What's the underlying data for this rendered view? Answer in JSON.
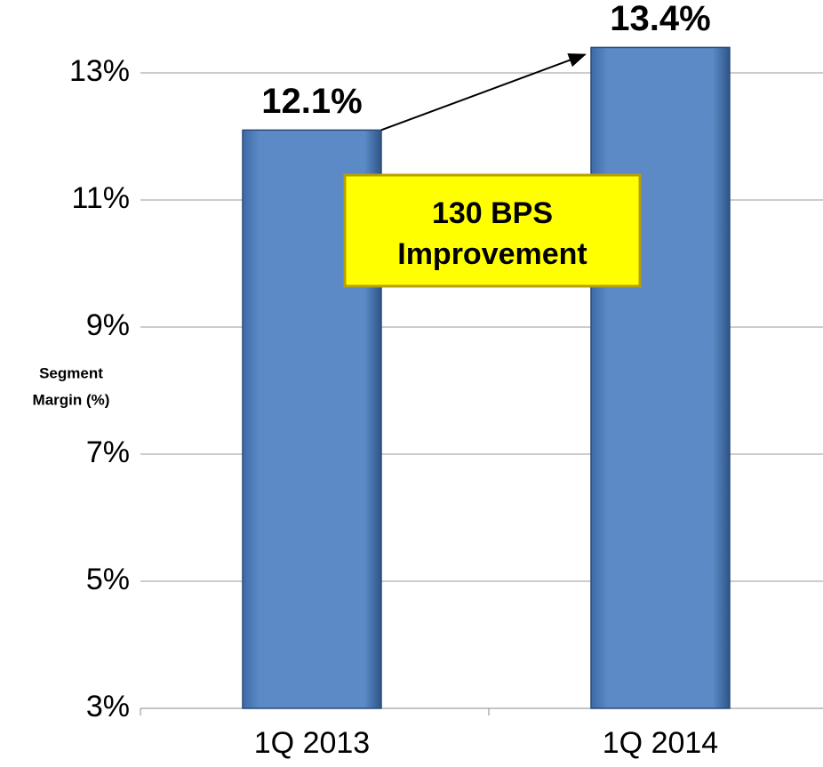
{
  "chart_data": {
    "type": "bar",
    "ylabel": [
      "Segment",
      "Margin (%)"
    ],
    "categories": [
      "1Q 2013",
      "1Q 2014"
    ],
    "values": [
      12.1,
      13.4
    ],
    "value_labels": [
      "12.1%",
      "13.4%"
    ],
    "color": "#5b8ac6",
    "ylim": [
      3,
      13.4
    ],
    "yticks": [
      {
        "value": 3,
        "label": "3%"
      },
      {
        "value": 5,
        "label": "5%"
      },
      {
        "value": 7,
        "label": "7%"
      },
      {
        "value": 9,
        "label": "9%"
      },
      {
        "value": 11,
        "label": "11%"
      },
      {
        "value": 13,
        "label": "13%"
      }
    ],
    "grid": true,
    "annotation": [
      "130 BPS",
      "Improvement"
    ]
  }
}
